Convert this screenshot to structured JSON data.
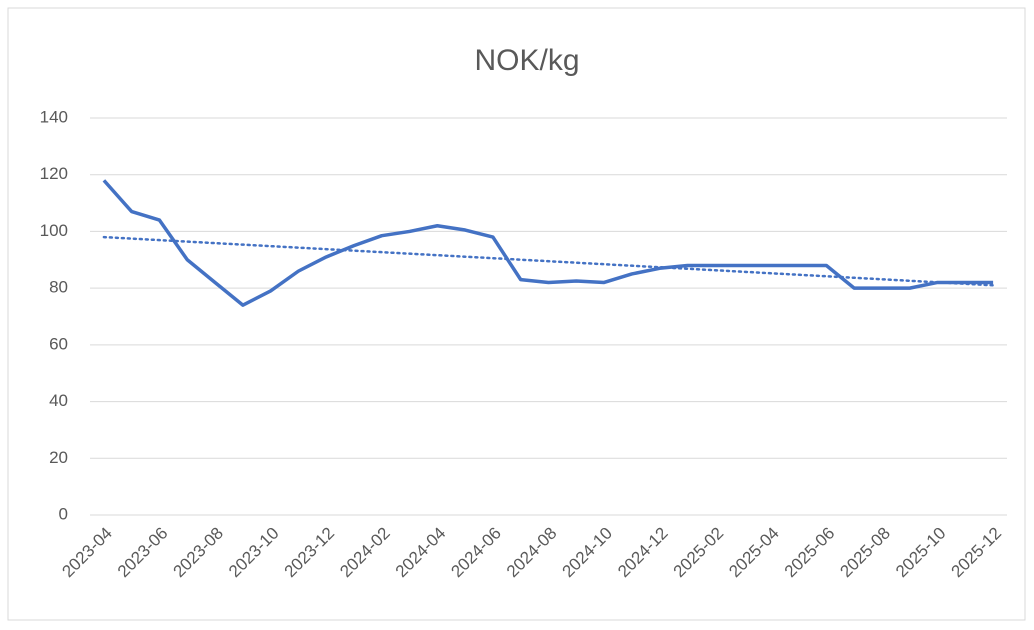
{
  "chart_data": {
    "type": "line",
    "title": "NOK/kg",
    "categories": [
      "2023-04",
      null,
      "2023-06",
      null,
      "2023-08",
      null,
      "2023-10",
      null,
      "2023-12",
      null,
      "2024-02",
      null,
      "2024-04",
      null,
      "2024-06",
      null,
      "2024-08",
      null,
      "2024-10",
      null,
      "2024-12",
      null,
      "2025-02",
      null,
      "2025-04",
      null,
      "2025-06",
      null,
      "2025-08",
      null,
      "2025-10",
      null,
      "2025-12"
    ],
    "series": [
      {
        "color": "#4472c4",
        "values": [
          118,
          107,
          104,
          90,
          82,
          74,
          79,
          86,
          91,
          95,
          98.5,
          100,
          102,
          100.5,
          98,
          83,
          82,
          82.5,
          82,
          85,
          87,
          88,
          88,
          88,
          88,
          88,
          88,
          80,
          80,
          80,
          82,
          82,
          82
        ]
      }
    ],
    "trendline": {
      "color": "#4472c4",
      "values": [
        98,
        81
      ]
    },
    "ylim": [
      0,
      140
    ],
    "yticks": [
      0,
      20,
      40,
      60,
      80,
      100,
      120,
      140
    ],
    "grid": true
  }
}
